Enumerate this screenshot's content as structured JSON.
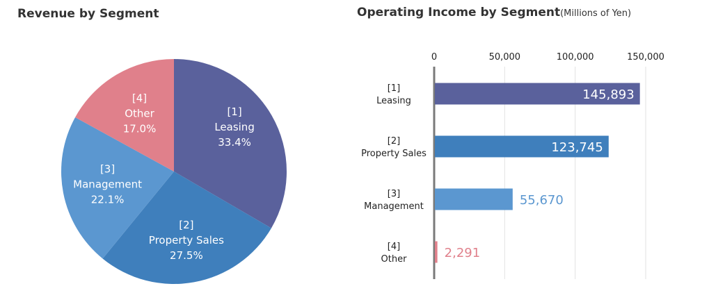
{
  "chart_data": [
    {
      "type": "pie",
      "title": "Revenue by Segment",
      "slices": [
        {
          "id": "[1]",
          "label": "Leasing",
          "value": 33.4,
          "display": "33.4%",
          "color": "#5a619c"
        },
        {
          "id": "[2]",
          "label": "Property Sales",
          "value": 27.5,
          "display": "27.5%",
          "color": "#3f7fbc"
        },
        {
          "id": "[3]",
          "label": "Management",
          "value": 22.1,
          "display": "22.1%",
          "color": "#5b97d0"
        },
        {
          "id": "[4]",
          "label": "Other",
          "value": 17.0,
          "display": "17.0%",
          "color": "#e0808b"
        }
      ]
    },
    {
      "type": "bar",
      "orientation": "horizontal",
      "title": "Operating Income by Segment",
      "unit": "(Millions of Yen)",
      "xlim": [
        0,
        150000
      ],
      "ticks": [
        {
          "value": 0,
          "label": "0"
        },
        {
          "value": 50000,
          "label": "50,000"
        },
        {
          "value": 100000,
          "label": "100,000"
        },
        {
          "value": 150000,
          "label": "150,000"
        }
      ],
      "grid": true,
      "bars": [
        {
          "id": "[1]",
          "label": "Leasing",
          "value": 145893,
          "display": "145,893",
          "color": "#5a619c",
          "label_position": "inside"
        },
        {
          "id": "[2]",
          "label": "Property Sales",
          "value": 123745,
          "display": "123,745",
          "color": "#3f7fbc",
          "label_position": "inside"
        },
        {
          "id": "[3]",
          "label": "Management",
          "value": 55670,
          "display": "55,670",
          "color": "#5b97d0",
          "label_position": "outside"
        },
        {
          "id": "[4]",
          "label": "Other",
          "value": 2291,
          "display": "2,291",
          "color": "#e0808b",
          "label_position": "outside"
        }
      ]
    }
  ]
}
